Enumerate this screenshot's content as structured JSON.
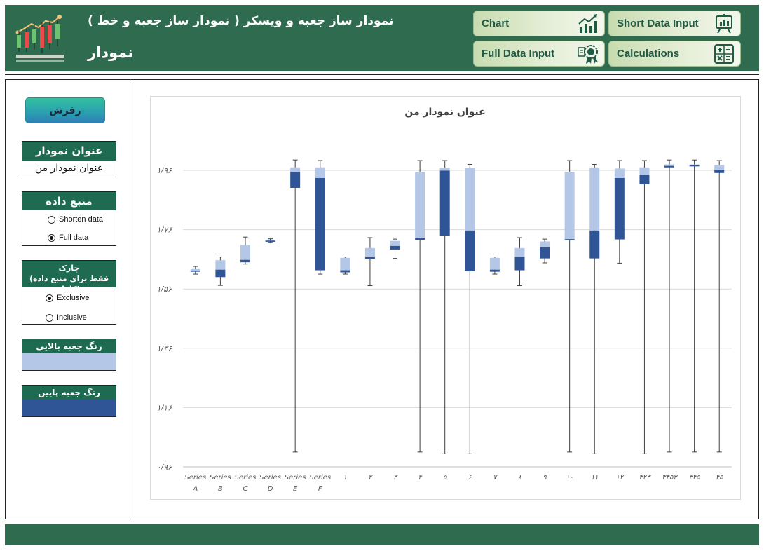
{
  "header": {
    "subtitle": "نمودار ساز جعبه و ویسکر ( نمودار ساز جعبه و خط )",
    "title": "نمودار"
  },
  "nav": {
    "chart": "Chart",
    "short_data_input": "Short Data Input",
    "full_data_input": "Full Data Input",
    "calculations": "Calculations"
  },
  "sidebar": {
    "refresh_label": "رفرش",
    "chart_title_panel": {
      "header": "عنوان نمودار",
      "value": "عنوان نمودار من"
    },
    "data_source_panel": {
      "header": "منبع داده",
      "options": [
        "Shorten data",
        "Full data"
      ],
      "selected": "Full data"
    },
    "quartile_panel": {
      "header_line1": "چارک",
      "header_line2": "(فقط برای منبع داده کامل)",
      "options": [
        "Exclusive",
        "Inclusive"
      ],
      "selected": "Exclusive"
    },
    "upper_box_color": {
      "header": "رنگ جعبه بالایی",
      "color": "#b4c7e7"
    },
    "lower_box_color": {
      "header": "رنگ جعبه پایین",
      "color": "#2f5597"
    }
  },
  "chart_data": {
    "type": "boxplot",
    "title": "عنوان نمودار من",
    "y_ticks": [
      "۰/۹۶",
      "۱/۱۶",
      "۱/۳۶",
      "۱/۵۶",
      "۱/۷۶",
      "۱/۹۶"
    ],
    "ylim": [
      0.96,
      2.0
    ],
    "grid": true,
    "categories": [
      {
        "l1": "Series",
        "l2": "A"
      },
      {
        "l1": "Series",
        "l2": "B"
      },
      {
        "l1": "Series",
        "l2": "C"
      },
      {
        "l1": "Series",
        "l2": "D"
      },
      {
        "l1": "Series",
        "l2": "E"
      },
      {
        "l1": "Series",
        "l2": "F"
      },
      {
        "l1": "۱",
        "l2": ""
      },
      {
        "l1": "۲",
        "l2": ""
      },
      {
        "l1": "۳",
        "l2": ""
      },
      {
        "l1": "۴",
        "l2": ""
      },
      {
        "l1": "۵",
        "l2": ""
      },
      {
        "l1": "۶",
        "l2": ""
      },
      {
        "l1": "۷",
        "l2": ""
      },
      {
        "l1": "۸",
        "l2": ""
      },
      {
        "l1": "۹",
        "l2": ""
      },
      {
        "l1": "۱۰",
        "l2": ""
      },
      {
        "l1": "۱۱",
        "l2": ""
      },
      {
        "l1": "۱۲",
        "l2": ""
      },
      {
        "l1": "۴۲۳",
        "l2": ""
      },
      {
        "l1": "۳۴۵۳",
        "l2": ""
      },
      {
        "l1": "۳۴۵",
        "l2": ""
      },
      {
        "l1": "۴۵",
        "l2": ""
      }
    ],
    "boxes": [
      {
        "min": 1.61,
        "q1": 1.618,
        "median": 1.622,
        "q3": 1.627,
        "max": 1.636
      },
      {
        "min": 1.572,
        "q1": 1.6,
        "median": 1.625,
        "q3": 1.657,
        "max": 1.668
      },
      {
        "min": 1.644,
        "q1": 1.65,
        "median": 1.658,
        "q3": 1.708,
        "max": 1.735
      },
      {
        "min": 1.717,
        "q1": 1.719,
        "median": 1.723,
        "q3": 1.726,
        "max": 1.729
      },
      {
        "min": 1.01,
        "q1": 1.901,
        "median": 1.955,
        "q3": 1.97,
        "max": 1.995
      },
      {
        "min": 1.61,
        "q1": 1.623,
        "median": 1.934,
        "q3": 1.97,
        "max": 1.993
      },
      {
        "min": 1.61,
        "q1": 1.616,
        "median": 1.623,
        "q3": 1.665,
        "max": 1.668
      },
      {
        "min": 1.571,
        "q1": 1.662,
        "median": 1.667,
        "q3": 1.698,
        "max": 1.733
      },
      {
        "min": 1.663,
        "q1": 1.693,
        "median": 1.705,
        "q3": 1.722,
        "max": 1.728
      },
      {
        "min": 1.01,
        "q1": 1.726,
        "median": 1.733,
        "q3": 1.955,
        "max": 1.993
      },
      {
        "min": 1.004,
        "q1": 1.74,
        "median": 1.959,
        "q3": 1.969,
        "max": 1.993
      },
      {
        "min": 1.004,
        "q1": 1.62,
        "median": 1.757,
        "q3": 1.969,
        "max": 1.98
      },
      {
        "min": 1.61,
        "q1": 1.618,
        "median": 1.625,
        "q3": 1.665,
        "max": 1.668
      },
      {
        "min": 1.571,
        "q1": 1.623,
        "median": 1.668,
        "q3": 1.698,
        "max": 1.733
      },
      {
        "min": 1.648,
        "q1": 1.663,
        "median": 1.7,
        "q3": 1.72,
        "max": 1.728
      },
      {
        "min": 1.01,
        "q1": 1.726,
        "median": 1.728,
        "q3": 1.955,
        "max": 1.993
      },
      {
        "min": 1.004,
        "q1": 1.663,
        "median": 1.757,
        "q3": 1.97,
        "max": 1.98
      },
      {
        "min": 1.647,
        "q1": 1.727,
        "median": 1.934,
        "q3": 1.966,
        "max": 1.993
      },
      {
        "min": 1.004,
        "q1": 1.913,
        "median": 1.945,
        "q3": 1.97,
        "max": 1.993
      },
      {
        "min": 1.01,
        "q1": 1.97,
        "median": 1.975,
        "q3": 1.98,
        "max": 1.995
      },
      {
        "min": 1.01,
        "q1": 1.974,
        "median": 1.977,
        "q3": 1.98,
        "max": 1.995
      },
      {
        "min": 1.01,
        "q1": 1.951,
        "median": 1.962,
        "q3": 1.978,
        "max": 1.993
      }
    ]
  }
}
